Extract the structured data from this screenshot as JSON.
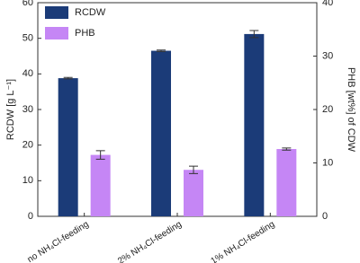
{
  "chart_data": {
    "type": "bar",
    "categories": [
      "no NH₄Cl-feeding",
      "2% NH₄Cl-feeding",
      "1% NH₄Cl-feeding"
    ],
    "series": [
      {
        "name": "RCDW",
        "color": "#1b3b78",
        "values": [
          38.8,
          46.5,
          51.2
        ],
        "errors": [
          0.2,
          0.2,
          1.0
        ]
      },
      {
        "name": "PHB",
        "color": "#c586f5",
        "axis": "y2",
        "values": [
          11.5,
          8.7,
          12.6
        ],
        "errors": [
          0.8,
          0.7,
          0.2
        ]
      }
    ],
    "ylabel": "RCDW [g L⁻¹]",
    "y2label": "PHB [wt%] of CDW",
    "ylim": [
      0,
      60
    ],
    "yticks": [
      0,
      10,
      20,
      30,
      40,
      50,
      60
    ],
    "y2lim": [
      0,
      40
    ],
    "y2ticks": [
      0,
      10,
      20,
      30,
      40
    ],
    "legend": "upper left"
  }
}
